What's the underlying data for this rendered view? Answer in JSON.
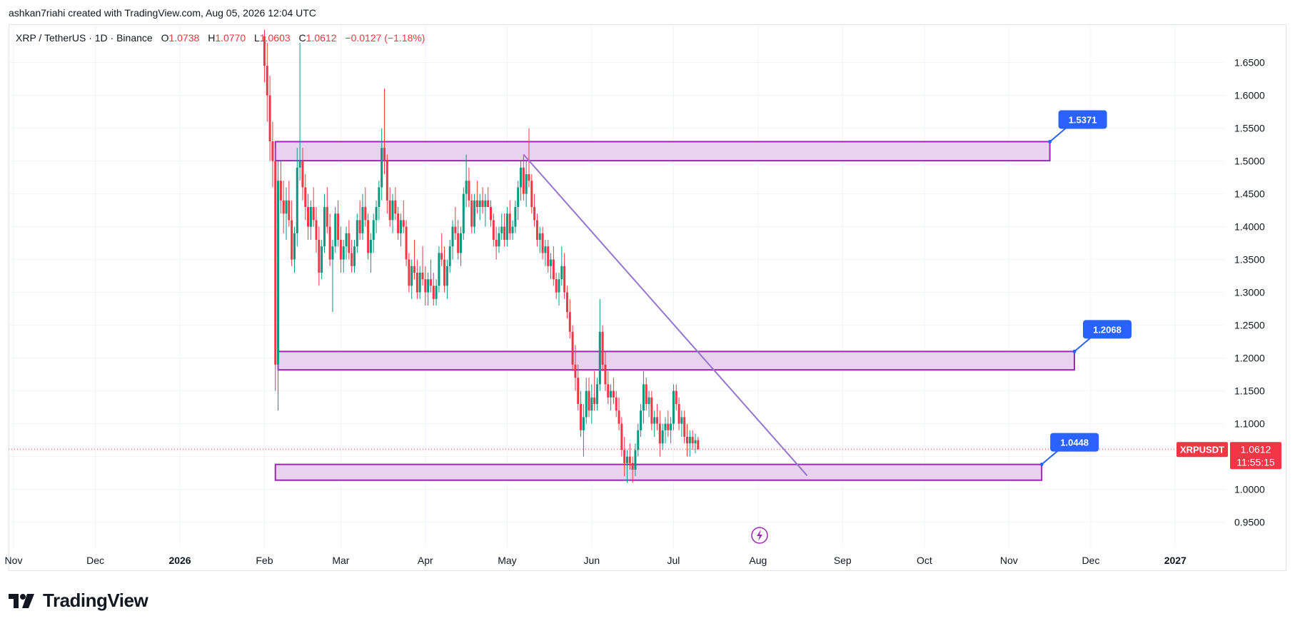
{
  "header": {
    "text": "ashkan7riahi created with TradingView.com, Aug 05, 2026 12:04 UTC"
  },
  "symbol_bar": {
    "name": "XRP / TetherUS · 1D · Binance",
    "o_label": "O",
    "o_value": "1.0738",
    "h_label": "H",
    "h_value": "1.0770",
    "l_label": "L",
    "l_value": "1.0603",
    "c_label": "C",
    "c_value": "1.0612",
    "change": "−0.0127 (−1.18%)"
  },
  "price_tag": {
    "symbol": "XRPUSDT",
    "price": "1.0612",
    "countdown": "11:55:15"
  },
  "footer": {
    "brand": "TradingView"
  },
  "colors": {
    "up": "#089981",
    "down": "#f23645",
    "zone_fill": "#e9d2ee",
    "zone_stroke": "#9c27b0",
    "trendline": "#9575cd",
    "callout": "#2962ff",
    "grid": "#f0f3fa"
  },
  "chart_data": {
    "type": "candlestick",
    "y_ticks": [
      "1.6500",
      "1.6000",
      "1.5500",
      "1.5000",
      "1.4500",
      "1.4000",
      "1.3500",
      "1.3000",
      "1.2500",
      "1.2000",
      "1.1500",
      "1.1000",
      "1.0500",
      "1.0000",
      "0.9500"
    ],
    "ylim": [
      0.93,
      1.68
    ],
    "x_ticks": [
      "Nov",
      "Dec",
      "2026",
      "Feb",
      "Mar",
      "Apr",
      "May",
      "Jun",
      "Jul",
      "Aug",
      "Sep",
      "Oct",
      "Nov",
      "Dec",
      "2027"
    ],
    "x_tick_dates": [
      "2025-11-01",
      "2025-12-01",
      "2026-01-01",
      "2026-02-01",
      "2026-03-01",
      "2026-04-01",
      "2026-05-01",
      "2026-06-01",
      "2026-07-01",
      "2026-08-01",
      "2026-09-01",
      "2026-10-01",
      "2026-11-01",
      "2026-12-01",
      "2027-01-01"
    ],
    "last_close": 1.0612,
    "zones": [
      {
        "from": "2026-02-05",
        "to": "2026-11-16",
        "low": 1.5005,
        "high": 1.5295,
        "label": "1.5371"
      },
      {
        "from": "2026-02-06",
        "to": "2026-11-25",
        "low": 1.182,
        "high": 1.21,
        "label": "1.2068"
      },
      {
        "from": "2026-02-05",
        "to": "2026-11-13",
        "low": 1.014,
        "high": 1.038,
        "label": "1.0448"
      }
    ],
    "trendline": {
      "from": [
        "2026-05-07",
        1.51
      ],
      "to": [
        "2026-08-19",
        1.021
      ]
    },
    "candles": [
      [
        "2026-02-01",
        1.69,
        1.7,
        1.62,
        1.645
      ],
      [
        "2026-02-02",
        1.645,
        1.68,
        1.56,
        1.6
      ],
      [
        "2026-02-03",
        1.6,
        1.63,
        1.5,
        1.53
      ],
      [
        "2026-02-04",
        1.53,
        1.56,
        1.46,
        1.5
      ],
      [
        "2026-02-05",
        1.5,
        1.52,
        1.15,
        1.19
      ],
      [
        "2026-02-06",
        1.19,
        1.5,
        1.12,
        1.47
      ],
      [
        "2026-02-07",
        1.47,
        1.5,
        1.42,
        1.44
      ],
      [
        "2026-02-08",
        1.44,
        1.47,
        1.39,
        1.42
      ],
      [
        "2026-02-09",
        1.42,
        1.46,
        1.38,
        1.44
      ],
      [
        "2026-02-10",
        1.44,
        1.47,
        1.4,
        1.41
      ],
      [
        "2026-02-11",
        1.41,
        1.44,
        1.34,
        1.35
      ],
      [
        "2026-02-12",
        1.35,
        1.4,
        1.33,
        1.39
      ],
      [
        "2026-02-13",
        1.39,
        1.52,
        1.37,
        1.49
      ],
      [
        "2026-02-14",
        1.49,
        1.68,
        1.47,
        1.5
      ],
      [
        "2026-02-15",
        1.5,
        1.52,
        1.44,
        1.46
      ],
      [
        "2026-02-16",
        1.46,
        1.48,
        1.41,
        1.43
      ],
      [
        "2026-02-17",
        1.43,
        1.45,
        1.38,
        1.4
      ],
      [
        "2026-02-18",
        1.4,
        1.44,
        1.38,
        1.43
      ],
      [
        "2026-02-19",
        1.43,
        1.46,
        1.4,
        1.41
      ],
      [
        "2026-02-20",
        1.41,
        1.43,
        1.36,
        1.38
      ],
      [
        "2026-02-21",
        1.38,
        1.4,
        1.31,
        1.33
      ],
      [
        "2026-02-22",
        1.33,
        1.38,
        1.32,
        1.37
      ],
      [
        "2026-02-23",
        1.37,
        1.45,
        1.36,
        1.43
      ],
      [
        "2026-02-24",
        1.43,
        1.46,
        1.39,
        1.4
      ],
      [
        "2026-02-25",
        1.4,
        1.42,
        1.34,
        1.35
      ],
      [
        "2026-02-26",
        1.35,
        1.38,
        1.27,
        1.37
      ],
      [
        "2026-02-27",
        1.37,
        1.43,
        1.36,
        1.42
      ],
      [
        "2026-02-28",
        1.42,
        1.44,
        1.37,
        1.38
      ],
      [
        "2026-03-01",
        1.38,
        1.4,
        1.33,
        1.35
      ],
      [
        "2026-03-02",
        1.35,
        1.38,
        1.33,
        1.37
      ],
      [
        "2026-03-03",
        1.37,
        1.4,
        1.35,
        1.39
      ],
      [
        "2026-03-04",
        1.39,
        1.41,
        1.35,
        1.36
      ],
      [
        "2026-03-05",
        1.36,
        1.38,
        1.33,
        1.34
      ],
      [
        "2026-03-06",
        1.34,
        1.38,
        1.33,
        1.37
      ],
      [
        "2026-03-07",
        1.37,
        1.42,
        1.36,
        1.41
      ],
      [
        "2026-03-08",
        1.41,
        1.44,
        1.38,
        1.39
      ],
      [
        "2026-03-09",
        1.39,
        1.45,
        1.38,
        1.43
      ],
      [
        "2026-03-10",
        1.43,
        1.46,
        1.4,
        1.41
      ],
      [
        "2026-03-11",
        1.41,
        1.42,
        1.35,
        1.36
      ],
      [
        "2026-03-12",
        1.36,
        1.39,
        1.33,
        1.38
      ],
      [
        "2026-03-13",
        1.38,
        1.42,
        1.36,
        1.41
      ],
      [
        "2026-03-14",
        1.41,
        1.44,
        1.39,
        1.43
      ],
      [
        "2026-03-15",
        1.43,
        1.47,
        1.41,
        1.46
      ],
      [
        "2026-03-16",
        1.46,
        1.55,
        1.44,
        1.52
      ],
      [
        "2026-03-17",
        1.52,
        1.61,
        1.48,
        1.5
      ],
      [
        "2026-03-18",
        1.5,
        1.51,
        1.42,
        1.44
      ],
      [
        "2026-03-19",
        1.44,
        1.46,
        1.4,
        1.41
      ],
      [
        "2026-03-20",
        1.41,
        1.45,
        1.39,
        1.44
      ],
      [
        "2026-03-21",
        1.44,
        1.46,
        1.41,
        1.42
      ],
      [
        "2026-03-22",
        1.42,
        1.43,
        1.38,
        1.39
      ],
      [
        "2026-03-23",
        1.39,
        1.42,
        1.37,
        1.41
      ],
      [
        "2026-03-24",
        1.41,
        1.44,
        1.39,
        1.4
      ],
      [
        "2026-03-25",
        1.4,
        1.41,
        1.34,
        1.35
      ],
      [
        "2026-03-26",
        1.35,
        1.36,
        1.3,
        1.31
      ],
      [
        "2026-03-27",
        1.31,
        1.35,
        1.29,
        1.34
      ],
      [
        "2026-03-28",
        1.34,
        1.38,
        1.32,
        1.33
      ],
      [
        "2026-03-29",
        1.33,
        1.35,
        1.29,
        1.3
      ],
      [
        "2026-03-30",
        1.3,
        1.34,
        1.29,
        1.33
      ],
      [
        "2026-03-31",
        1.33,
        1.37,
        1.31,
        1.32
      ],
      [
        "2026-04-01",
        1.32,
        1.34,
        1.28,
        1.3
      ],
      [
        "2026-04-02",
        1.3,
        1.33,
        1.28,
        1.32
      ],
      [
        "2026-04-03",
        1.32,
        1.35,
        1.3,
        1.31
      ],
      [
        "2026-04-04",
        1.31,
        1.33,
        1.28,
        1.29
      ],
      [
        "2026-04-05",
        1.29,
        1.32,
        1.28,
        1.31
      ],
      [
        "2026-04-06",
        1.31,
        1.37,
        1.3,
        1.36
      ],
      [
        "2026-04-07",
        1.36,
        1.39,
        1.34,
        1.35
      ],
      [
        "2026-04-08",
        1.35,
        1.37,
        1.3,
        1.31
      ],
      [
        "2026-04-09",
        1.31,
        1.35,
        1.29,
        1.34
      ],
      [
        "2026-04-10",
        1.34,
        1.38,
        1.33,
        1.37
      ],
      [
        "2026-04-11",
        1.37,
        1.41,
        1.35,
        1.4
      ],
      [
        "2026-04-12",
        1.4,
        1.43,
        1.38,
        1.39
      ],
      [
        "2026-04-13",
        1.39,
        1.41,
        1.35,
        1.36
      ],
      [
        "2026-04-14",
        1.36,
        1.4,
        1.34,
        1.39
      ],
      [
        "2026-04-15",
        1.39,
        1.46,
        1.38,
        1.45
      ],
      [
        "2026-04-16",
        1.45,
        1.51,
        1.43,
        1.47
      ],
      [
        "2026-04-17",
        1.47,
        1.49,
        1.43,
        1.44
      ],
      [
        "2026-04-18",
        1.44,
        1.45,
        1.39,
        1.4
      ],
      [
        "2026-04-19",
        1.4,
        1.45,
        1.39,
        1.44
      ],
      [
        "2026-04-20",
        1.44,
        1.47,
        1.42,
        1.43
      ],
      [
        "2026-04-21",
        1.43,
        1.45,
        1.41,
        1.44
      ],
      [
        "2026-04-22",
        1.44,
        1.46,
        1.42,
        1.43
      ],
      [
        "2026-04-23",
        1.43,
        1.45,
        1.4,
        1.44
      ],
      [
        "2026-04-24",
        1.44,
        1.46,
        1.43,
        1.43
      ],
      [
        "2026-04-25",
        1.43,
        1.44,
        1.4,
        1.41
      ],
      [
        "2026-04-26",
        1.41,
        1.42,
        1.37,
        1.38
      ],
      [
        "2026-04-27",
        1.38,
        1.4,
        1.35,
        1.37
      ],
      [
        "2026-04-28",
        1.37,
        1.4,
        1.36,
        1.39
      ],
      [
        "2026-04-29",
        1.39,
        1.42,
        1.38,
        1.4
      ],
      [
        "2026-04-30",
        1.4,
        1.42,
        1.37,
        1.38
      ],
      [
        "2026-05-01",
        1.38,
        1.43,
        1.37,
        1.42
      ],
      [
        "2026-05-02",
        1.42,
        1.44,
        1.38,
        1.39
      ],
      [
        "2026-05-03",
        1.39,
        1.41,
        1.38,
        1.4
      ],
      [
        "2026-05-04",
        1.4,
        1.44,
        1.39,
        1.43
      ],
      [
        "2026-05-05",
        1.43,
        1.47,
        1.41,
        1.46
      ],
      [
        "2026-05-06",
        1.46,
        1.5,
        1.44,
        1.49
      ],
      [
        "2026-05-07",
        1.49,
        1.51,
        1.44,
        1.45
      ],
      [
        "2026-05-08",
        1.45,
        1.5,
        1.43,
        1.48
      ],
      [
        "2026-05-09",
        1.48,
        1.55,
        1.46,
        1.47
      ],
      [
        "2026-05-10",
        1.47,
        1.48,
        1.42,
        1.43
      ],
      [
        "2026-05-11",
        1.43,
        1.45,
        1.4,
        1.41
      ],
      [
        "2026-05-12",
        1.41,
        1.42,
        1.37,
        1.38
      ],
      [
        "2026-05-13",
        1.38,
        1.4,
        1.36,
        1.39
      ],
      [
        "2026-05-14",
        1.39,
        1.4,
        1.35,
        1.36
      ],
      [
        "2026-05-15",
        1.36,
        1.38,
        1.34,
        1.37
      ],
      [
        "2026-05-16",
        1.37,
        1.38,
        1.33,
        1.34
      ],
      [
        "2026-05-17",
        1.34,
        1.36,
        1.32,
        1.35
      ],
      [
        "2026-05-18",
        1.35,
        1.37,
        1.31,
        1.32
      ],
      [
        "2026-05-19",
        1.32,
        1.33,
        1.29,
        1.3
      ],
      [
        "2026-05-20",
        1.3,
        1.33,
        1.28,
        1.32
      ],
      [
        "2026-05-21",
        1.32,
        1.37,
        1.31,
        1.34
      ],
      [
        "2026-05-22",
        1.34,
        1.36,
        1.29,
        1.3
      ],
      [
        "2026-05-23",
        1.3,
        1.31,
        1.26,
        1.27
      ],
      [
        "2026-05-24",
        1.27,
        1.29,
        1.23,
        1.24
      ],
      [
        "2026-05-25",
        1.24,
        1.25,
        1.18,
        1.19
      ],
      [
        "2026-05-26",
        1.19,
        1.22,
        1.15,
        1.17
      ],
      [
        "2026-05-27",
        1.17,
        1.19,
        1.12,
        1.13
      ],
      [
        "2026-05-28",
        1.13,
        1.15,
        1.08,
        1.09
      ],
      [
        "2026-05-29",
        1.09,
        1.13,
        1.05,
        1.11
      ],
      [
        "2026-05-30",
        1.11,
        1.17,
        1.1,
        1.15
      ],
      [
        "2026-05-31",
        1.15,
        1.17,
        1.11,
        1.12
      ],
      [
        "2026-06-01",
        1.12,
        1.16,
        1.1,
        1.14
      ],
      [
        "2026-06-02",
        1.14,
        1.18,
        1.12,
        1.13
      ],
      [
        "2026-06-03",
        1.13,
        1.17,
        1.12,
        1.16
      ],
      [
        "2026-06-04",
        1.16,
        1.29,
        1.15,
        1.24
      ],
      [
        "2026-06-05",
        1.24,
        1.25,
        1.18,
        1.19
      ],
      [
        "2026-06-06",
        1.19,
        1.21,
        1.15,
        1.16
      ],
      [
        "2026-06-07",
        1.16,
        1.18,
        1.13,
        1.14
      ],
      [
        "2026-06-08",
        1.14,
        1.16,
        1.12,
        1.15
      ],
      [
        "2026-06-09",
        1.15,
        1.17,
        1.13,
        1.14
      ],
      [
        "2026-06-10",
        1.14,
        1.15,
        1.11,
        1.12
      ],
      [
        "2026-06-11",
        1.12,
        1.14,
        1.09,
        1.1
      ],
      [
        "2026-06-12",
        1.1,
        1.11,
        1.05,
        1.06
      ],
      [
        "2026-06-13",
        1.06,
        1.08,
        1.02,
        1.04
      ],
      [
        "2026-06-14",
        1.04,
        1.06,
        1.01,
        1.05
      ],
      [
        "2026-06-15",
        1.05,
        1.07,
        1.03,
        1.04
      ],
      [
        "2026-06-16",
        1.04,
        1.05,
        1.01,
        1.03
      ],
      [
        "2026-06-17",
        1.03,
        1.07,
        1.02,
        1.06
      ],
      [
        "2026-06-18",
        1.06,
        1.1,
        1.05,
        1.09
      ],
      [
        "2026-06-19",
        1.09,
        1.13,
        1.08,
        1.12
      ],
      [
        "2026-06-20",
        1.12,
        1.18,
        1.1,
        1.16
      ],
      [
        "2026-06-21",
        1.16,
        1.17,
        1.12,
        1.13
      ],
      [
        "2026-06-22",
        1.13,
        1.15,
        1.11,
        1.14
      ],
      [
        "2026-06-23",
        1.14,
        1.15,
        1.09,
        1.1
      ],
      [
        "2026-06-24",
        1.1,
        1.12,
        1.08,
        1.11
      ],
      [
        "2026-06-25",
        1.11,
        1.13,
        1.09,
        1.1
      ],
      [
        "2026-06-26",
        1.1,
        1.12,
        1.05,
        1.07
      ],
      [
        "2026-06-27",
        1.07,
        1.1,
        1.06,
        1.09
      ],
      [
        "2026-06-28",
        1.09,
        1.11,
        1.07,
        1.1
      ],
      [
        "2026-06-29",
        1.1,
        1.12,
        1.08,
        1.09
      ],
      [
        "2026-06-30",
        1.09,
        1.11,
        1.07,
        1.1
      ],
      [
        "2026-07-01",
        1.1,
        1.16,
        1.09,
        1.15
      ],
      [
        "2026-07-02",
        1.15,
        1.16,
        1.12,
        1.13
      ],
      [
        "2026-07-03",
        1.13,
        1.14,
        1.09,
        1.1
      ],
      [
        "2026-07-04",
        1.1,
        1.12,
        1.08,
        1.11
      ],
      [
        "2026-07-05",
        1.11,
        1.12,
        1.07,
        1.08
      ],
      [
        "2026-07-06",
        1.08,
        1.1,
        1.05,
        1.07
      ],
      [
        "2026-07-07",
        1.07,
        1.09,
        1.05,
        1.08
      ],
      [
        "2026-07-08",
        1.08,
        1.09,
        1.06,
        1.07
      ],
      [
        "2026-07-09",
        1.07,
        1.085,
        1.055,
        1.075
      ],
      [
        "2026-07-10",
        1.075,
        1.08,
        1.06,
        1.0612
      ]
    ]
  }
}
